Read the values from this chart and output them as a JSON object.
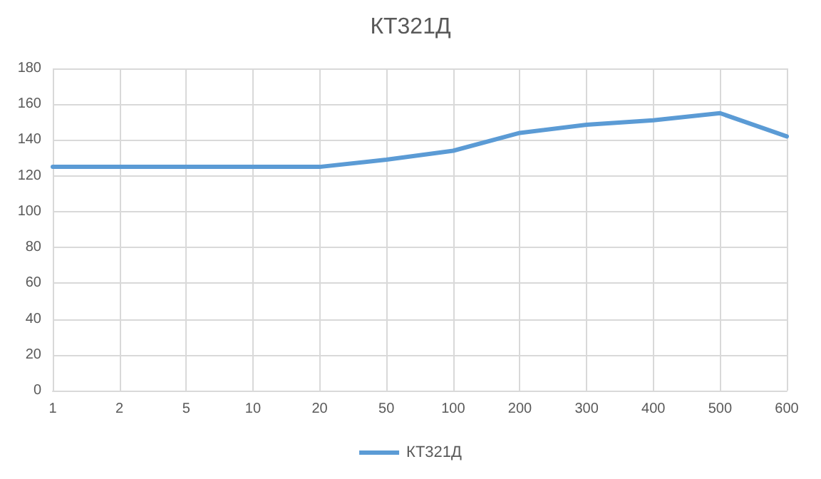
{
  "chart_data": {
    "type": "line",
    "title": "КТ321Д",
    "categories": [
      "1",
      "2",
      "5",
      "10",
      "20",
      "50",
      "100",
      "200",
      "300",
      "400",
      "500",
      "600"
    ],
    "series": [
      {
        "name": "КТ321Д",
        "color": "#5b9bd5",
        "values": [
          125,
          125,
          125,
          125,
          125,
          129,
          134,
          144,
          148.5,
          151,
          155,
          142
        ]
      }
    ],
    "ylim": [
      0,
      180
    ],
    "yticks": [
      0,
      20,
      40,
      60,
      80,
      100,
      120,
      140,
      160,
      180
    ],
    "grid": true,
    "legend": "bottom",
    "marker": "none",
    "line_style": "solid"
  }
}
